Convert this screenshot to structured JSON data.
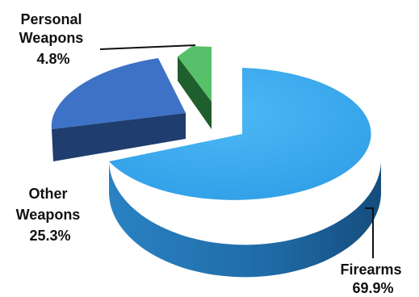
{
  "chart_data": {
    "type": "pie",
    "title": "",
    "three_d": true,
    "exploded": true,
    "slices": [
      {
        "name": "Firearms",
        "value": 69.9,
        "label_lines": [
          "Firearms",
          "69.9%"
        ],
        "color": "#39A9EE"
      },
      {
        "name": "Other Weapons",
        "value": 25.3,
        "label_lines": [
          "Other",
          "Weapons",
          "25.3%"
        ],
        "color": "#3D6FC4"
      },
      {
        "name": "Personal Weapons",
        "value": 4.8,
        "label_lines": [
          "Personal",
          "Weapons",
          "4.8%"
        ],
        "color": "#57C06A"
      }
    ]
  }
}
